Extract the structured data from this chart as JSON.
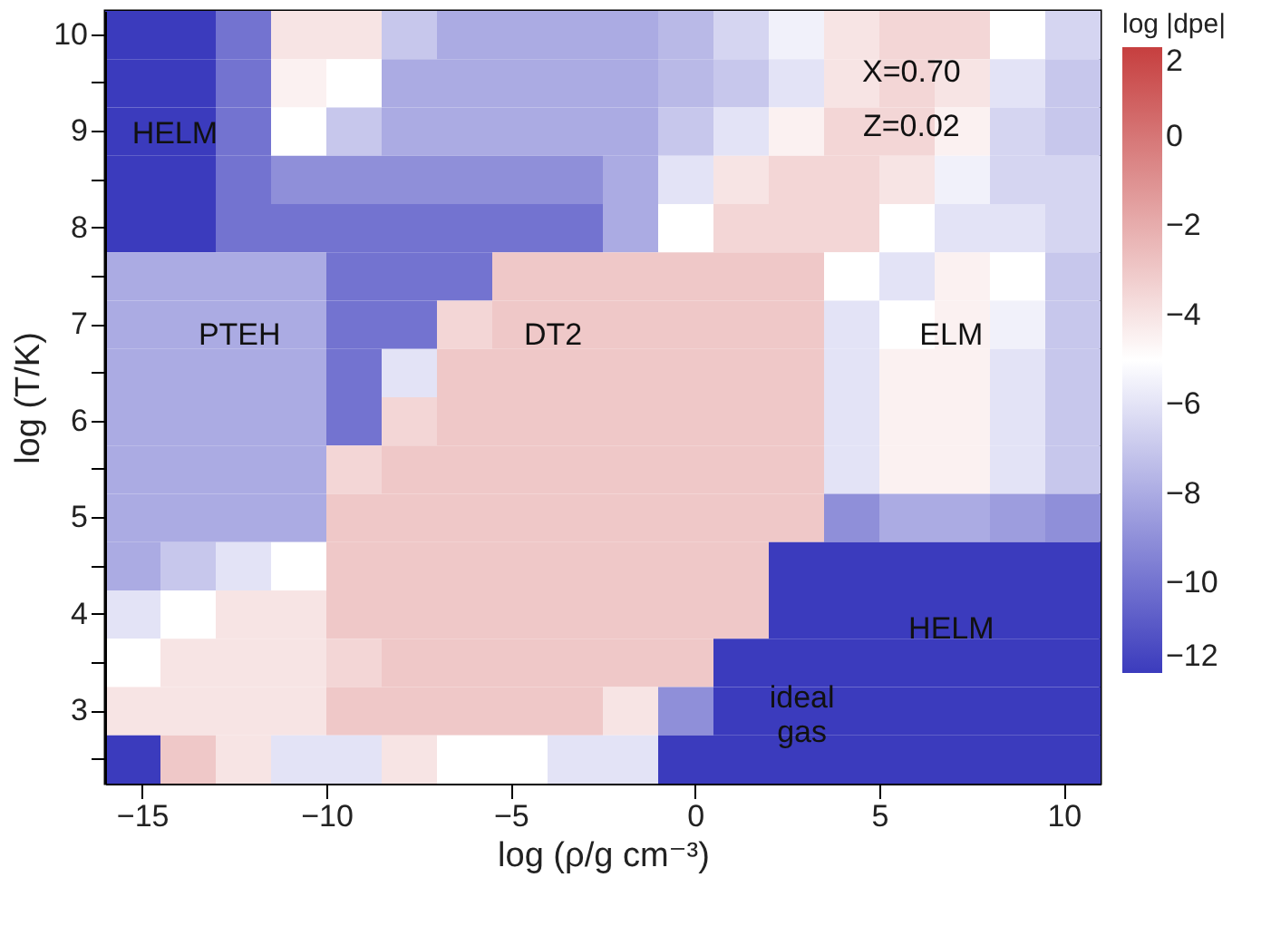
{
  "chart_data": {
    "type": "heatmap",
    "xlabel": "log (ρ/g cm⁻³)",
    "ylabel": "log (T/K)",
    "clabel": "log |dpe|",
    "x": [
      -15.25,
      -13.75,
      -12.25,
      -10.75,
      -9.25,
      -7.75,
      -6.25,
      -4.75,
      -3.25,
      -1.75,
      -0.25,
      1.25,
      2.75,
      4.25,
      5.75,
      7.25,
      8.75,
      10.25
    ],
    "y_categories": [
      "10",
      null,
      "9",
      null,
      "8",
      null,
      "7",
      null,
      "6",
      null,
      "5",
      null,
      "4",
      null,
      "3",
      null
    ],
    "cells": [
      [
        -12,
        -12,
        -10,
        -4,
        -4,
        -7,
        -8,
        -8,
        -8,
        -8,
        -7.5,
        -6.5,
        -5.5,
        -4,
        -3.5,
        -3.5,
        -5,
        -6.5
      ],
      [
        -12,
        -12,
        -10,
        -4.5,
        -5,
        -8,
        -8,
        -8,
        -8,
        -8,
        -7.5,
        -7,
        -6,
        -4,
        -3.5,
        -4,
        -6,
        -7
      ],
      [
        -12,
        -12,
        -10,
        -5,
        -7,
        -8,
        -8,
        -8,
        -8,
        -8,
        -7,
        -6,
        -4.5,
        -3.5,
        -3.5,
        -4.5,
        -6.5,
        -7
      ],
      [
        -12,
        -12,
        -10,
        -9,
        -9,
        -9,
        -9,
        -9,
        -9,
        -8,
        -6,
        -4,
        -3.5,
        -3.5,
        -4,
        -5.5,
        -6.5,
        -6.5
      ],
      [
        -12,
        -12,
        -10,
        -10,
        -10,
        -10,
        -10,
        -10,
        -10,
        -8,
        -5,
        -3.5,
        -3.5,
        -3.5,
        -5,
        -6,
        -6,
        -6.5
      ],
      [
        -8,
        -8,
        -8,
        -8,
        -10,
        -10,
        -10,
        -3,
        -3,
        -3,
        -3,
        -3,
        -3,
        -5,
        -6,
        -4.5,
        -5,
        -7
      ],
      [
        -8,
        -8,
        -8,
        -8,
        -10,
        -10,
        -3.5,
        -3,
        -3,
        -3,
        -3,
        -3,
        -3,
        -6,
        -5,
        -4.5,
        -5.5,
        -7
      ],
      [
        -8,
        -8,
        -8,
        -8,
        -10,
        -6,
        -3,
        -3,
        -3,
        -3,
        -3,
        -3,
        -3,
        -6,
        -4.5,
        -4.5,
        -6,
        -7
      ],
      [
        -8,
        -8,
        -8,
        -8,
        -10,
        -3.5,
        -3,
        -3,
        -3,
        -3,
        -3,
        -3,
        -3,
        -6,
        -4.5,
        -4.5,
        -6,
        -7
      ],
      [
        -8,
        -8,
        -8,
        -8,
        -3.5,
        -3,
        -3,
        -3,
        -3,
        -3,
        -3,
        -3,
        -3,
        -6,
        -4.5,
        -4.5,
        -6,
        -7
      ],
      [
        -8,
        -8,
        -8,
        -8,
        -3,
        -3,
        -3,
        -3,
        -3,
        -3,
        -3,
        -3,
        -3,
        -9,
        -8,
        -8,
        -8.5,
        -9
      ],
      [
        -8,
        -7,
        -6,
        -5,
        -3,
        -3,
        -3,
        -3,
        -3,
        -3,
        -3,
        -3,
        -12,
        -12,
        -12,
        -12,
        -12,
        -12
      ],
      [
        -6,
        -5,
        -4,
        -4,
        -3,
        -3,
        -3,
        -3,
        -3,
        -3,
        -3,
        -3,
        -12,
        -12,
        -12,
        -12,
        -12,
        -12
      ],
      [
        -5,
        -4,
        -4,
        -4,
        -3.5,
        -3,
        -3,
        -3,
        -3,
        -3,
        -3,
        -12,
        -12,
        -12,
        -12,
        -12,
        -12,
        -12
      ],
      [
        -4,
        -4,
        -4,
        -4,
        -3,
        -3,
        -3,
        -3,
        -3,
        -4,
        -9,
        -12,
        -12,
        -12,
        -12,
        -12,
        -12,
        -12
      ],
      [
        -12,
        -3,
        -4,
        -6,
        -6,
        -4,
        -5,
        -5,
        -6,
        -6,
        -12,
        -12,
        -12,
        -12,
        -12,
        -12,
        -12,
        -12
      ]
    ],
    "xlim": [
      -16,
      11
    ],
    "xticks": [
      -15,
      -10,
      -5,
      0,
      5,
      10
    ],
    "clim": [
      -12,
      2
    ],
    "cticks": [
      2,
      0,
      -2,
      -4,
      -6,
      -8,
      -10,
      -12
    ],
    "annotations": [
      "HELM",
      "PTEH",
      "DT2",
      "ELM",
      "HELM",
      "ideal gas",
      "X=0.70",
      "Z=0.02"
    ]
  }
}
